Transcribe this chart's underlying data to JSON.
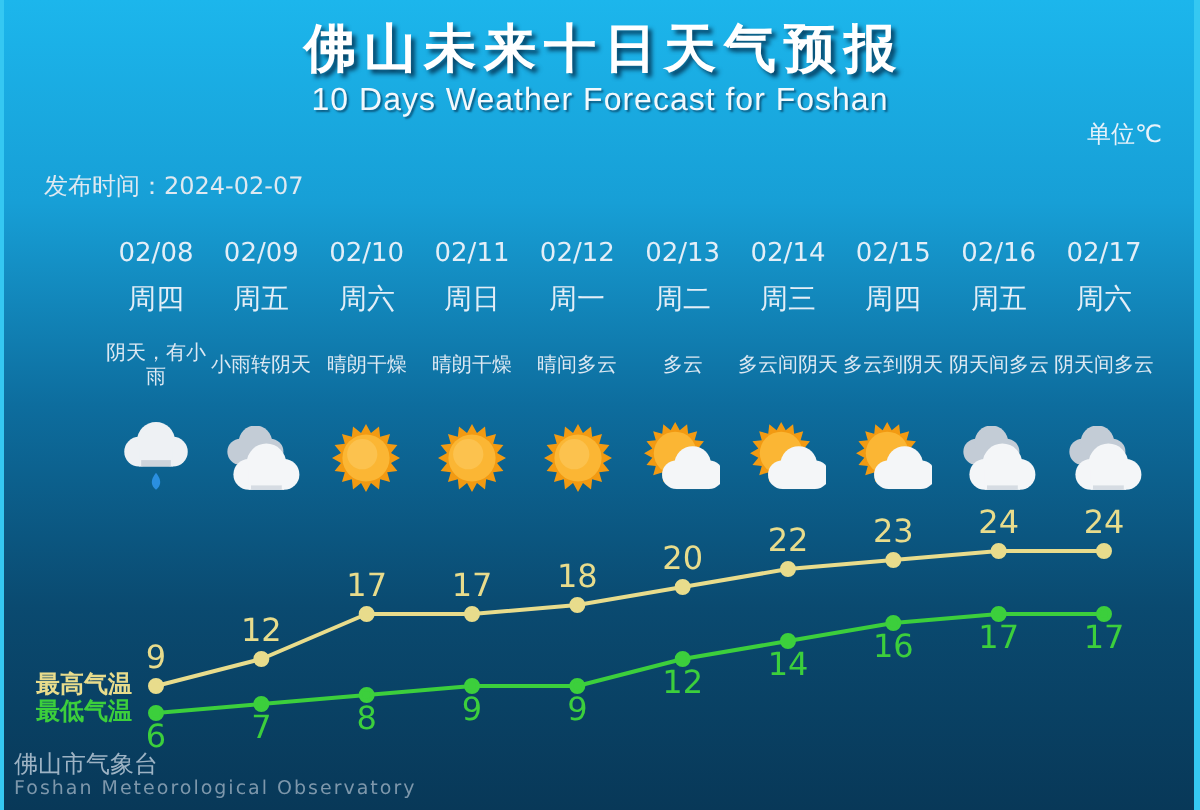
{
  "chart_data": {
    "type": "line",
    "title": "佛山未来十日天气预报",
    "subtitle": "10 Days Weather Forecast for Foshan",
    "categories": [
      "02/08 周四",
      "02/09 周五",
      "02/10 周六",
      "02/11 周日",
      "02/12 周一",
      "02/13 周二",
      "02/14 周三",
      "02/15 周四",
      "02/16 周五",
      "02/17 周六"
    ],
    "series": [
      {
        "name": "最高气温",
        "color": "#e8dc8c",
        "values": [
          9,
          12,
          17,
          17,
          18,
          20,
          22,
          23,
          24,
          24
        ]
      },
      {
        "name": "最低气温",
        "color": "#3ccf3c",
        "values": [
          6,
          7,
          8,
          9,
          9,
          12,
          14,
          16,
          17,
          17
        ]
      }
    ],
    "annotations": [
      "单位℃",
      "发布时间：2024-02-07",
      "佛山市气象台",
      "Foshan Meteorological Observatory",
      "阴天，有小雨",
      "小雨转阴天",
      "晴朗干燥",
      "晴朗干燥",
      "晴间多云",
      "多云",
      "多云间阴天",
      "多云到阴天",
      "阴天间多云",
      "阴天间多云"
    ],
    "data_labels": true,
    "marker": "circle",
    "line_style": "solid",
    "tick_labels": "x"
  }
}
